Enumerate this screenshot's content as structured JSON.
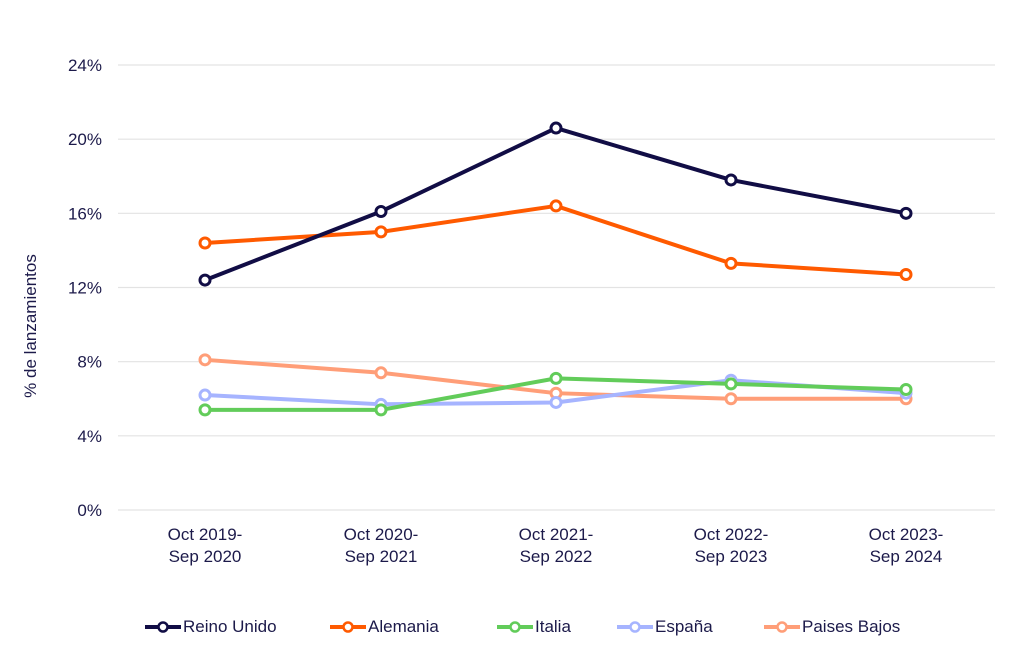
{
  "chart_data": {
    "type": "line",
    "title": "",
    "xlabel": "",
    "ylabel": "% de lanzamientos",
    "ylim": [
      0,
      24
    ],
    "yticks": [
      "0%",
      "4%",
      "8%",
      "12%",
      "16%",
      "20%",
      "24%"
    ],
    "ytick_values": [
      0,
      4,
      8,
      12,
      16,
      20,
      24
    ],
    "grid": true,
    "legend_position": "bottom",
    "categories": [
      [
        "Oct 2019-",
        "Sep 2020"
      ],
      [
        "Oct 2020-",
        "Sep 2021"
      ],
      [
        "Oct 2021-",
        "Sep 2022"
      ],
      [
        "Oct 2022-",
        "Sep 2023"
      ],
      [
        "Oct 2023-",
        "Sep 2024"
      ]
    ],
    "series": [
      {
        "name": "Reino Unido",
        "color": "#110d45",
        "values": [
          12.4,
          16.1,
          20.6,
          17.8,
          16.0
        ]
      },
      {
        "name": "Alemania",
        "color": "#ff5a00",
        "values": [
          14.4,
          15.0,
          16.4,
          13.3,
          12.7
        ]
      },
      {
        "name": "Italia",
        "color": "#62cc5a",
        "values": [
          5.4,
          5.4,
          7.1,
          6.8,
          6.5
        ]
      },
      {
        "name": "España",
        "color": "#a6b4ff",
        "values": [
          6.2,
          5.7,
          5.8,
          7.0,
          6.3
        ]
      },
      {
        "name": "Paises Bajos",
        "color": "#ff9e78",
        "values": [
          8.1,
          7.4,
          6.3,
          6.0,
          6.0
        ]
      }
    ]
  }
}
